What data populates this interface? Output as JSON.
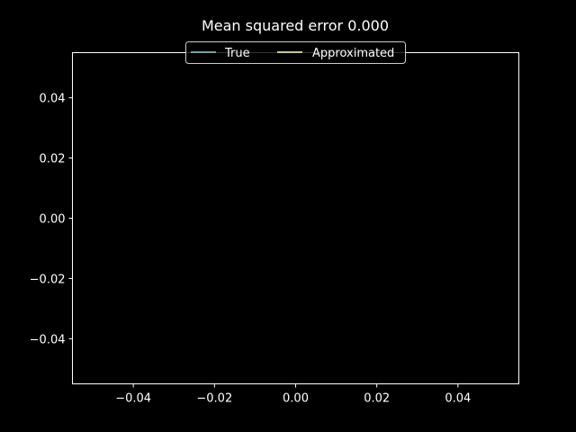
{
  "chart_data": {
    "type": "line",
    "title": "Mean squared error 0.000",
    "xlabel": "",
    "ylabel": "",
    "xlim": [
      -0.055,
      0.055
    ],
    "ylim": [
      -0.055,
      0.055
    ],
    "x_ticks": [
      -0.04,
      -0.02,
      0.0,
      0.02,
      0.04
    ],
    "x_tick_labels": [
      "−0.04",
      "−0.02",
      "0.00",
      "0.02",
      "0.04"
    ],
    "y_ticks": [
      -0.04,
      -0.02,
      0.0,
      0.02,
      0.04
    ],
    "y_tick_labels": [
      "−0.04",
      "−0.02",
      "0.00",
      "0.02",
      "0.04"
    ],
    "grid": false,
    "legend_position": "top-center",
    "series": [
      {
        "name": "True",
        "color": "#8dd3c7",
        "x": [],
        "y": []
      },
      {
        "name": "Approximated",
        "color": "#ffffb3",
        "x": [],
        "y": []
      }
    ],
    "background": "#000000",
    "foreground": "#ffffff"
  }
}
